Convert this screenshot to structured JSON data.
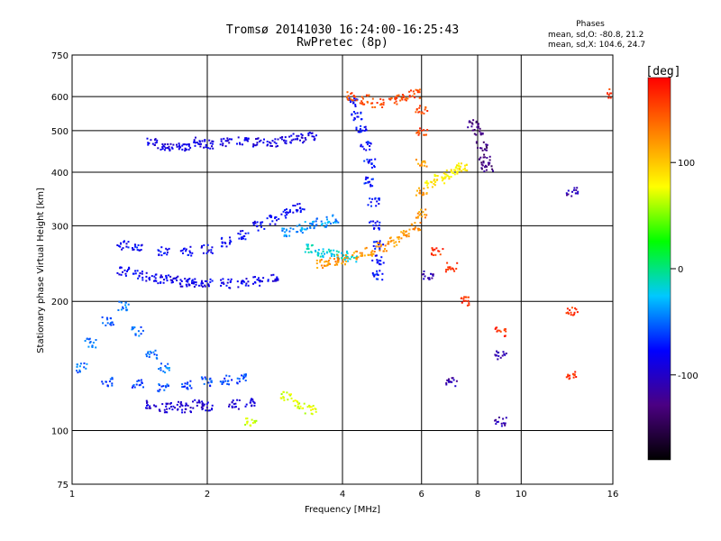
{
  "chart_data": {
    "type": "scatter",
    "title": "Tromsø 20141030 16:24:00-16:25:43",
    "subtitle": "RwPretec (8p)",
    "xlabel": "Frequency [MHz]",
    "ylabel": "Stationary phase Virtual Height [km]",
    "x_scale": "log",
    "y_scale": "log",
    "xlim": [
      1,
      16
    ],
    "ylim": [
      75,
      750
    ],
    "x_ticks": [
      1,
      2,
      4,
      6,
      8,
      10,
      16
    ],
    "y_ticks": [
      75,
      100,
      200,
      300,
      400,
      500,
      600,
      750
    ],
    "grid": true,
    "phase_stats": {
      "title": "Phases",
      "line1": "mean, sd,O: -80.8, 21.2",
      "line2": "mean, sd,X: 104.6, 24.7"
    },
    "colorbar": {
      "label": "[deg]",
      "range": [
        -180,
        180
      ],
      "ticks": [
        100,
        0,
        -100
      ],
      "colors": [
        "#000000",
        "#4b0082",
        "#0000ff",
        "#00c8ff",
        "#00ff00",
        "#ffff00",
        "#ff8000",
        "#ff0000"
      ]
    },
    "series": [
      {
        "phase": -90,
        "points": [
          [
            1.5,
            470
          ],
          [
            1.6,
            460
          ],
          [
            1.7,
            455
          ],
          [
            1.8,
            460
          ],
          [
            1.9,
            470
          ],
          [
            2.0,
            465
          ],
          [
            2.2,
            470
          ],
          [
            2.4,
            475
          ],
          [
            2.6,
            470
          ],
          [
            2.8,
            470
          ],
          [
            3.0,
            475
          ],
          [
            3.2,
            480
          ],
          [
            3.4,
            485
          ]
        ]
      },
      {
        "phase": -85,
        "points": [
          [
            1.3,
            235
          ],
          [
            1.4,
            230
          ],
          [
            1.5,
            228
          ],
          [
            1.6,
            226
          ],
          [
            1.7,
            224
          ],
          [
            1.8,
            222
          ],
          [
            1.9,
            221
          ],
          [
            2.0,
            220
          ],
          [
            2.2,
            220
          ],
          [
            2.4,
            221
          ],
          [
            2.6,
            223
          ],
          [
            2.8,
            226
          ]
        ]
      },
      {
        "phase": -80,
        "points": [
          [
            1.3,
            270
          ],
          [
            1.4,
            265
          ],
          [
            1.6,
            262
          ],
          [
            1.8,
            262
          ],
          [
            2.0,
            265
          ],
          [
            2.2,
            275
          ],
          [
            2.4,
            285
          ],
          [
            2.6,
            300
          ],
          [
            2.8,
            310
          ],
          [
            3.0,
            320
          ],
          [
            3.2,
            330
          ]
        ]
      },
      {
        "phase": -95,
        "points": [
          [
            1.5,
            115
          ],
          [
            1.6,
            113
          ],
          [
            1.7,
            114
          ],
          [
            1.8,
            113
          ],
          [
            1.9,
            115
          ],
          [
            2.0,
            114
          ],
          [
            2.3,
            115
          ],
          [
            2.5,
            116
          ]
        ]
      },
      {
        "phase": -60,
        "points": [
          [
            1.2,
            130
          ],
          [
            1.4,
            128
          ],
          [
            1.6,
            126
          ],
          [
            1.8,
            128
          ],
          [
            2.0,
            130
          ],
          [
            2.2,
            131
          ],
          [
            2.4,
            132
          ]
        ]
      },
      {
        "phase": -50,
        "points": [
          [
            1.05,
            140
          ],
          [
            1.1,
            160
          ],
          [
            1.2,
            180
          ],
          [
            1.3,
            195
          ],
          [
            1.4,
            170
          ],
          [
            1.5,
            150
          ],
          [
            1.6,
            140
          ]
        ]
      },
      {
        "phase": -75,
        "points": [
          [
            4.2,
            580
          ],
          [
            4.3,
            540
          ],
          [
            4.4,
            500
          ],
          [
            4.5,
            460
          ],
          [
            4.6,
            420
          ],
          [
            4.6,
            380
          ],
          [
            4.7,
            340
          ],
          [
            4.7,
            300
          ],
          [
            4.8,
            270
          ],
          [
            4.8,
            250
          ],
          [
            4.8,
            230
          ]
        ]
      },
      {
        "phase": -40,
        "points": [
          [
            3.0,
            290
          ],
          [
            3.2,
            295
          ],
          [
            3.4,
            300
          ],
          [
            3.6,
            305
          ],
          [
            3.8,
            310
          ]
        ]
      },
      {
        "phase": -20,
        "points": [
          [
            3.4,
            265
          ],
          [
            3.6,
            260
          ],
          [
            3.8,
            258
          ],
          [
            4.0,
            255
          ],
          [
            4.2,
            253
          ]
        ]
      },
      {
        "phase": 120,
        "points": [
          [
            3.6,
            245
          ],
          [
            3.8,
            248
          ],
          [
            4.0,
            250
          ],
          [
            4.3,
            255
          ],
          [
            4.6,
            260
          ],
          [
            4.9,
            268
          ],
          [
            5.2,
            275
          ],
          [
            5.5,
            285
          ],
          [
            5.8,
            300
          ],
          [
            6.0,
            320
          ],
          [
            6.0,
            360
          ],
          [
            6.0,
            420
          ]
        ]
      },
      {
        "phase": 150,
        "points": [
          [
            4.2,
            600
          ],
          [
            4.5,
            590
          ],
          [
            4.8,
            580
          ],
          [
            5.2,
            590
          ],
          [
            5.5,
            600
          ],
          [
            5.8,
            610
          ],
          [
            6.0,
            500
          ],
          [
            6.0,
            560
          ]
        ]
      },
      {
        "phase": 85,
        "points": [
          [
            6.3,
            375
          ],
          [
            6.6,
            385
          ],
          [
            6.9,
            395
          ],
          [
            7.2,
            405
          ],
          [
            7.4,
            410
          ]
        ]
      },
      {
        "phase": 70,
        "points": [
          [
            2.5,
            105
          ],
          [
            3.0,
            120
          ],
          [
            3.2,
            115
          ],
          [
            3.4,
            112
          ]
        ]
      },
      {
        "phase": -130,
        "points": [
          [
            7.8,
            520
          ],
          [
            8.0,
            500
          ],
          [
            8.2,
            460
          ],
          [
            8.3,
            430
          ],
          [
            8.4,
            410
          ]
        ]
      },
      {
        "phase": 160,
        "points": [
          [
            6.5,
            260
          ],
          [
            7.0,
            240
          ],
          [
            7.5,
            200
          ],
          [
            9.0,
            170
          ],
          [
            13.0,
            190
          ],
          [
            13.0,
            135
          ],
          [
            16.0,
            610
          ]
        ]
      },
      {
        "phase": -110,
        "points": [
          [
            9.0,
            105
          ],
          [
            9.0,
            150
          ],
          [
            13.0,
            360
          ],
          [
            7.0,
            130
          ],
          [
            6.2,
            230
          ]
        ]
      }
    ]
  }
}
